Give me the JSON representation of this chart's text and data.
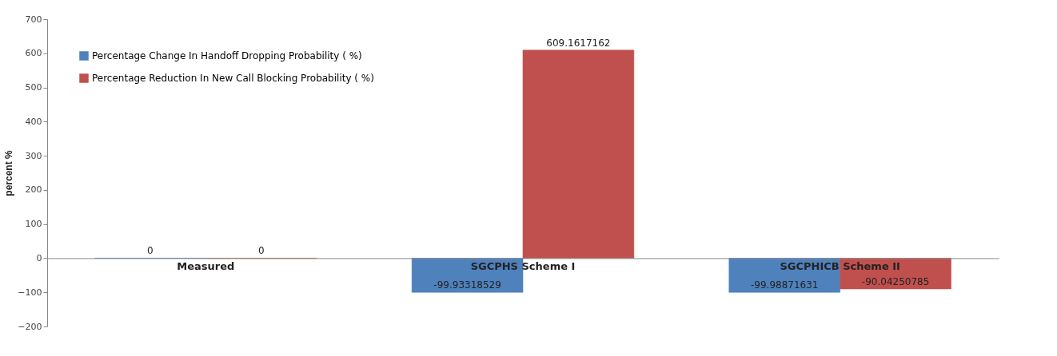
{
  "chart_data": {
    "type": "bar",
    "ylabel": "percent %",
    "categories": [
      "Measured",
      "SGCPHS Scheme I",
      "SGCPHICB Scheme II"
    ],
    "series": [
      {
        "name": "Percentage Change In Handoff  Dropping Probability  ( %)",
        "color": "#4f81bd",
        "values": [
          0,
          -99.93318529,
          -99.98871631
        ]
      },
      {
        "name": "Percentage Reduction In New Call Blocking Probability  ( %)",
        "color": "#c0504d",
        "values": [
          0,
          609.1617162,
          -90.04250785
        ]
      }
    ],
    "ylim": [
      -200,
      700
    ],
    "yticks": [
      -200,
      -100,
      0,
      100,
      200,
      300,
      400,
      500,
      600,
      700
    ],
    "grid": false,
    "legend": "top left",
    "data_labels": true
  }
}
